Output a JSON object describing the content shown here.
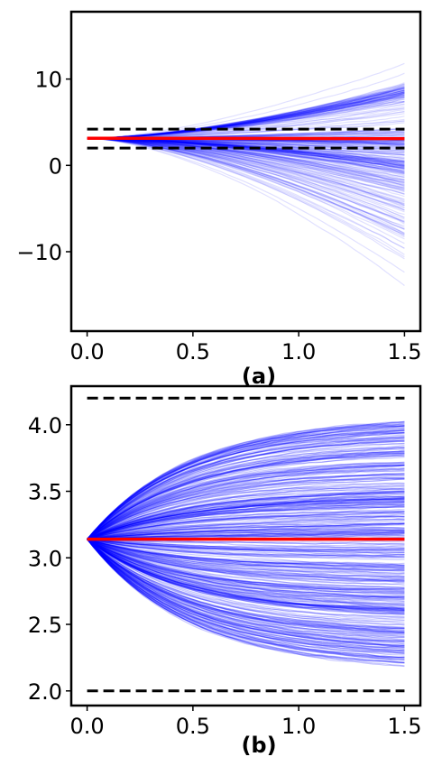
{
  "chart_data": [
    {
      "type": "line",
      "panel_label": "(a)",
      "xlim": [
        -0.075,
        1.575
      ],
      "ylim": [
        -19.2,
        17.8
      ],
      "xticks": [
        0.0,
        0.5,
        1.0,
        1.5
      ],
      "xtick_labels": [
        "0.0",
        "0.5",
        "1.0",
        "1.5"
      ],
      "yticks": [
        -10,
        0,
        10
      ],
      "ytick_labels": [
        "−10",
        "0",
        "10"
      ],
      "grid": false,
      "ensemble": {
        "color": "#0000ff",
        "count": 300,
        "x_range": [
          0.0,
          1.5
        ],
        "start_value": 3.14,
        "spread_at_end": [
          -17.5,
          16.0
        ],
        "attractor_levels": [
          0.0,
          3.14,
          8.5
        ]
      },
      "mean_line": {
        "color": "#ff0000",
        "x": [
          0.0,
          1.5
        ],
        "y": [
          3.14,
          3.1
        ]
      },
      "bounds": {
        "color": "#000000",
        "style": "dashed",
        "x": [
          0.0,
          1.5
        ],
        "values": [
          2.0,
          4.2
        ]
      }
    },
    {
      "type": "line",
      "panel_label": "(b)",
      "xlim": [
        -0.075,
        1.575
      ],
      "ylim": [
        1.89,
        4.29
      ],
      "xticks": [
        0.0,
        0.5,
        1.0,
        1.5
      ],
      "xtick_labels": [
        "0.0",
        "0.5",
        "1.0",
        "1.5"
      ],
      "yticks": [
        2.0,
        2.5,
        3.0,
        3.5,
        4.0
      ],
      "ytick_labels": [
        "2.0",
        "2.5",
        "3.0",
        "3.5",
        "4.0"
      ],
      "grid": false,
      "ensemble": {
        "color": "#0000ff",
        "count": 400,
        "x_range": [
          0.0,
          1.5
        ],
        "start_value": 3.14,
        "spread_at_end": [
          2.2,
          4.02
        ]
      },
      "mean_line": {
        "color": "#ff0000",
        "x": [
          0.0,
          1.5
        ],
        "y": [
          3.14,
          3.14
        ]
      },
      "bounds": {
        "color": "#000000",
        "style": "dashed",
        "x": [
          0.0,
          1.5
        ],
        "values": [
          2.0,
          4.2
        ]
      }
    }
  ]
}
